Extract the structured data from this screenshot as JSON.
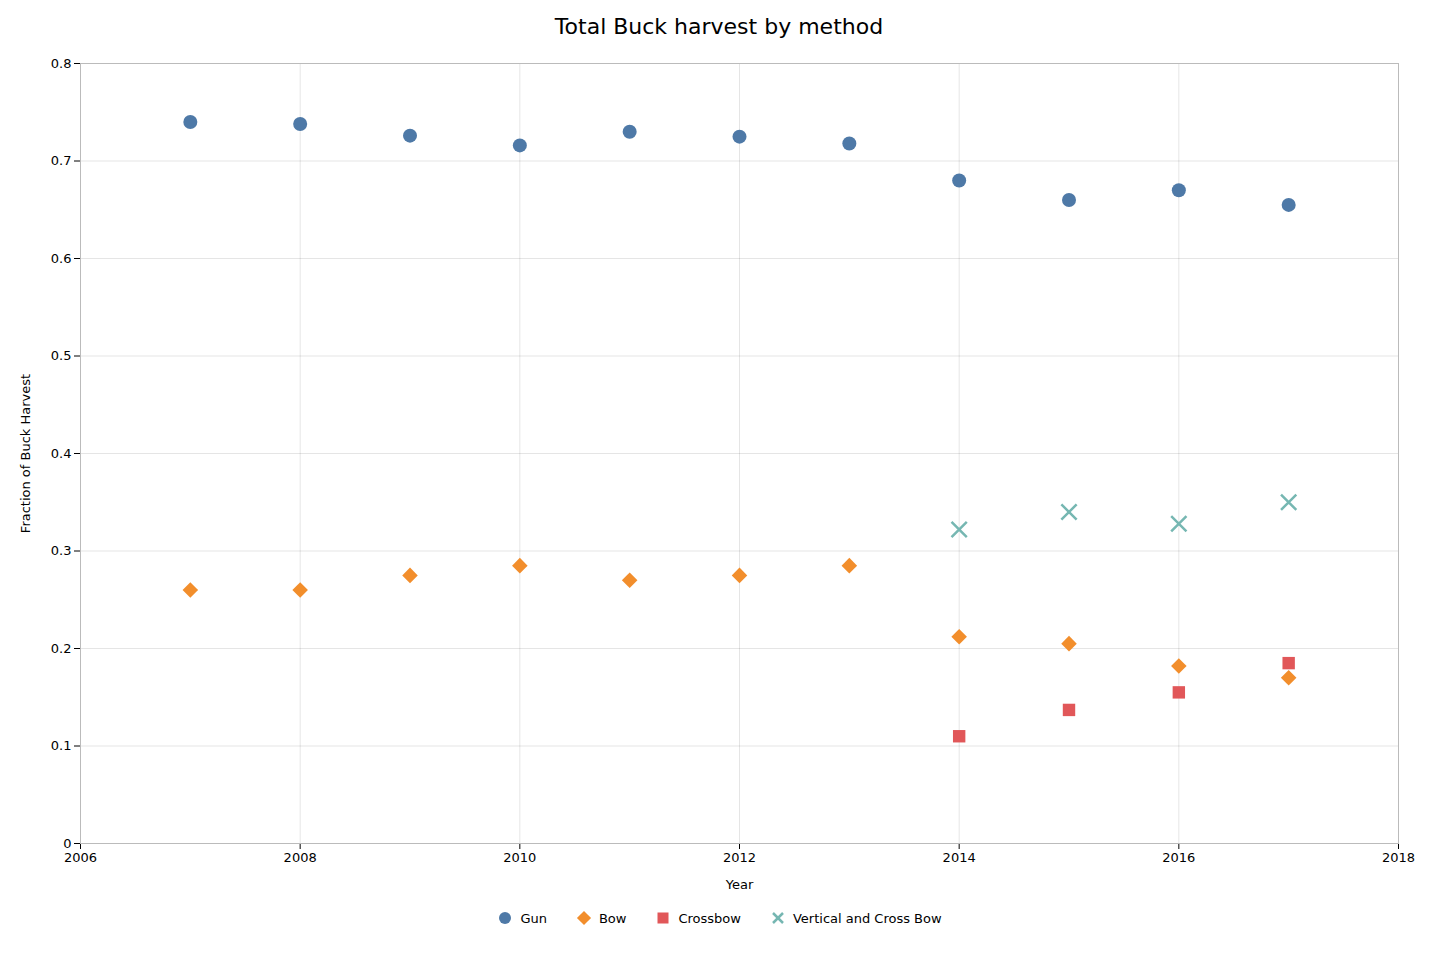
{
  "chart_data": {
    "type": "scatter",
    "title": "Total Buck harvest by method",
    "xlabel": "Year",
    "ylabel": "Fraction of Buck Harvest",
    "xlim": [
      2006,
      2018
    ],
    "ylim": [
      0,
      0.8
    ],
    "xticks": [
      2006,
      2008,
      2010,
      2012,
      2014,
      2016,
      2018
    ],
    "yticks": [
      0,
      0.1,
      0.2,
      0.3,
      0.4,
      0.5,
      0.6,
      0.7,
      0.8
    ],
    "grid": true,
    "legend": "bottom",
    "series": [
      {
        "name": "Gun",
        "marker": "circle",
        "x": [
          2007,
          2008,
          2009,
          2010,
          2011,
          2012,
          2013,
          2014,
          2015,
          2016,
          2017
        ],
        "values": [
          0.74,
          0.738,
          0.726,
          0.716,
          0.73,
          0.725,
          0.718,
          0.68,
          0.66,
          0.67,
          0.655
        ]
      },
      {
        "name": "Bow",
        "marker": "diamond",
        "x": [
          2007,
          2008,
          2009,
          2010,
          2011,
          2012,
          2013,
          2014,
          2015,
          2016,
          2017
        ],
        "values": [
          0.26,
          0.26,
          0.275,
          0.285,
          0.27,
          0.275,
          0.285,
          0.212,
          0.205,
          0.182,
          0.17
        ]
      },
      {
        "name": "Crossbow",
        "marker": "square",
        "x": [
          2014,
          2015,
          2016,
          2017
        ],
        "values": [
          0.11,
          0.137,
          0.155,
          0.185
        ]
      },
      {
        "name": "Vertical and Cross Bow",
        "marker": "x",
        "x": [
          2014,
          2015,
          2016,
          2017
        ],
        "values": [
          0.322,
          0.34,
          0.328,
          0.35
        ]
      }
    ]
  }
}
